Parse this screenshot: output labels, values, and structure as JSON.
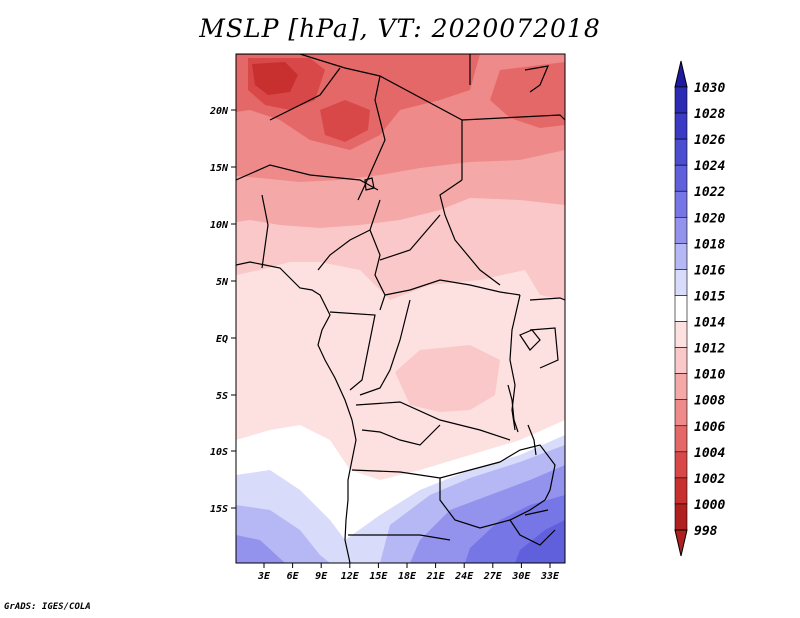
{
  "title": "MSLP [hPa], VT: 2020072018",
  "footer": "GrADS: IGES/COLA",
  "map": {
    "lat_labels": [
      "20N",
      "15N",
      "10N",
      "5N",
      "EQ",
      "5S",
      "10S",
      "15S"
    ],
    "lon_labels": [
      "3E",
      "6E",
      "9E",
      "12E",
      "15E",
      "18E",
      "21E",
      "24E",
      "27E",
      "30E",
      "33E"
    ]
  },
  "colorbar": {
    "labels": [
      "1030",
      "1028",
      "1026",
      "1024",
      "1022",
      "1020",
      "1018",
      "1016",
      "1015",
      "1014",
      "1012",
      "1010",
      "1008",
      "1006",
      "1004",
      "1002",
      "1000",
      "998"
    ],
    "colors": [
      "#1e1ba0",
      "#2b2bb4",
      "#3a3ac4",
      "#4c4ed2",
      "#6060dc",
      "#7676e6",
      "#9393ee",
      "#b5b8f4",
      "#d8dbfa",
      "#ffffff",
      "#fde0e0",
      "#fac8c8",
      "#f5a8a8",
      "#ee8a8a",
      "#e56868",
      "#d84848",
      "#c83030",
      "#b02020"
    ]
  }
}
